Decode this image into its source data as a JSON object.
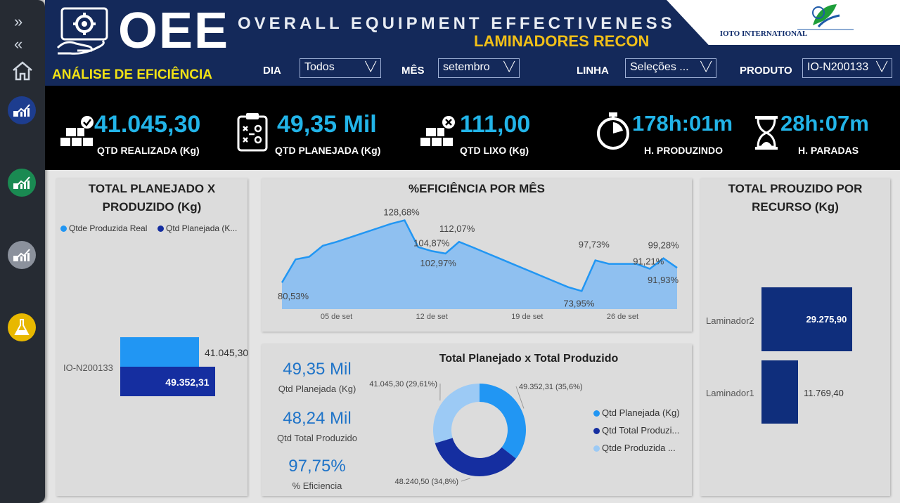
{
  "header": {
    "logo_text": "OEE",
    "title": "OVERALL EQUIPMENT EFFECTIVENESS",
    "subtitle": "LAMINADORES RECON",
    "section": "ANÁLISE DE EFICIÊNCIA",
    "brand": "IOTO INTERNATIONAL"
  },
  "filters": [
    {
      "label": "DIA",
      "value": "Todos"
    },
    {
      "label": "MÊS",
      "value": "setembro"
    },
    {
      "label": "LINHA",
      "value": "Seleções ..."
    },
    {
      "label": "PRODUTO",
      "value": "IO-N200133"
    }
  ],
  "kpis": [
    {
      "value": "41.045,30",
      "label": "QTD REALIZADA (Kg)",
      "icon": "boxes-check-icon"
    },
    {
      "value": "49,35 Mil",
      "label": "QTD PLANEJADA (Kg)",
      "icon": "clipboard-icon"
    },
    {
      "value": "111,00",
      "label": "QTD LIXO (Kg)",
      "icon": "boxes-x-icon"
    },
    {
      "value": "178h:01m",
      "label": "H. PRODUZINDO",
      "icon": "stopwatch-icon"
    },
    {
      "value": "28h:07m",
      "label": "H. PARADAS",
      "icon": "hourglass-icon"
    }
  ],
  "colors": {
    "header": "#14295a",
    "accent": "#22b4e8",
    "yellow": "#f2e214",
    "light_blue": "#2196f3",
    "dark_blue": "#152ea0",
    "pale_blue": "#9ccaf5",
    "navy": "#0f2e7c"
  },
  "chart_data": [
    {
      "type": "bar",
      "title": "TOTAL PLANEJADO X PRODUZIDO (Kg)",
      "categories": [
        "IO-N200133"
      ],
      "series": [
        {
          "name": "Qtde Produzida Real",
          "values": [
            41045.3
          ],
          "labels": [
            "41.045,30"
          ],
          "color": "#2196f3"
        },
        {
          "name": "Qtd Planejada (K...",
          "values": [
            49352.31
          ],
          "labels": [
            "49.352,31"
          ],
          "color": "#152ea0"
        }
      ],
      "orientation": "horizontal"
    },
    {
      "type": "area",
      "title": "%EFICIÊNCIA POR MÊS",
      "x_ticks": [
        "05 de set",
        "12 de set",
        "19 de set",
        "26 de set"
      ],
      "x": [
        1,
        2,
        3,
        4,
        5,
        6,
        7,
        8,
        9,
        10,
        11,
        12,
        13,
        14,
        15,
        16,
        17,
        18,
        19,
        20,
        21,
        22,
        23,
        24,
        25,
        26,
        27,
        28,
        29,
        30
      ],
      "values": [
        80.53,
        98.5,
        100.5,
        109,
        112,
        115.5,
        119,
        122.5,
        126,
        128.68,
        108,
        104.87,
        102.97,
        112.07,
        107.8,
        103.4,
        99,
        94.6,
        90.2,
        85.8,
        81.4,
        77,
        73.95,
        97.73,
        95,
        95,
        95,
        91.21,
        99.28,
        91.93
      ],
      "labels": [
        {
          "value": "80,53%",
          "x": 1
        },
        {
          "value": "128,68%",
          "x": 10
        },
        {
          "value": "104,87%",
          "x": 12
        },
        {
          "value": "102,97%",
          "x": 13
        },
        {
          "value": "112,07%",
          "x": 14
        },
        {
          "value": "73,95%",
          "x": 23
        },
        {
          "value": "97,73%",
          "x": 24
        },
        {
          "value": "91,21%",
          "x": 28
        },
        {
          "value": "99,28%",
          "x": 29
        },
        {
          "value": "91,93%",
          "x": 30
        }
      ]
    },
    {
      "type": "pie",
      "title": "Total Planejado x Total Produzido",
      "series": [
        {
          "name": "Qtd Planejada (Kg)",
          "value": 49352.31,
          "label": "49.352,31 (35,6%)",
          "color": "#2196f3"
        },
        {
          "name": "Qtd Total Produzi...",
          "value": 48240.5,
          "label": "48.240,50 (34,8%)",
          "color": "#152ea0"
        },
        {
          "name": "Qtde Produzida ...",
          "value": 41045.3,
          "label": "41.045,30 (29,61%)",
          "color": "#9ccaf5"
        }
      ]
    },
    {
      "type": "bar",
      "title": "TOTAL PROUZIDO POR RECURSO (Kg)",
      "categories": [
        "Laminador2",
        "Laminador1"
      ],
      "values": [
        29275.9,
        11769.4
      ],
      "labels": [
        "29.275,90",
        "11.769,40"
      ],
      "orientation": "horizontal"
    }
  ],
  "summary": [
    {
      "value": "49,35 Mil",
      "label": "Qtd Planejada (Kg)"
    },
    {
      "value": "48,24 Mil",
      "label": "Qtd Total Produzido"
    },
    {
      "value": "97,75%",
      "label": "% Eficiencia"
    }
  ]
}
